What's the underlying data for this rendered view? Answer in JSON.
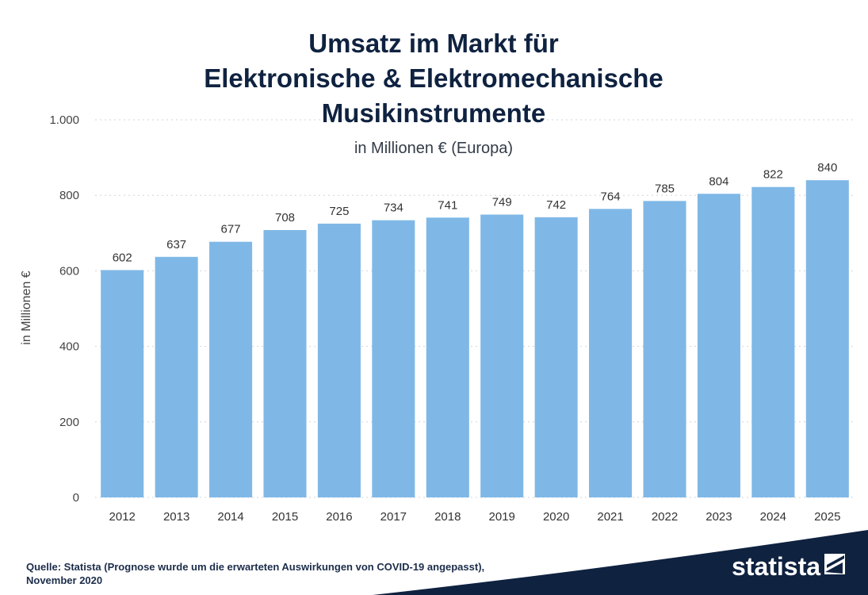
{
  "chart_data": {
    "type": "bar",
    "title_lines": [
      "Umsatz im Markt für",
      "Elektronische & Elektromechanische",
      "Musikinstrumente"
    ],
    "subtitle": "in Millionen € (Europa)",
    "ylabel": "in Millionen €",
    "xlabel": "",
    "ylim": [
      0,
      1000
    ],
    "y_ticks": [
      0,
      200,
      400,
      600,
      800,
      1000
    ],
    "y_tick_labels": [
      "0",
      "200",
      "400",
      "600",
      "800",
      "1.000"
    ],
    "grid": true,
    "categories": [
      "2012",
      "2013",
      "2014",
      "2015",
      "2016",
      "2017",
      "2018",
      "2019",
      "2020",
      "2021",
      "2022",
      "2023",
      "2024",
      "2025"
    ],
    "values": [
      602,
      637,
      677,
      708,
      725,
      734,
      741,
      749,
      742,
      764,
      785,
      804,
      822,
      840
    ],
    "bar_color": "#7fb8e6"
  },
  "footer": {
    "source": "Quelle: Statista (Prognose wurde um die erwarteten Auswirkungen von COVID-19 angepasst), November 2020",
    "brand": "statista",
    "brand_color": "#0f2240"
  }
}
